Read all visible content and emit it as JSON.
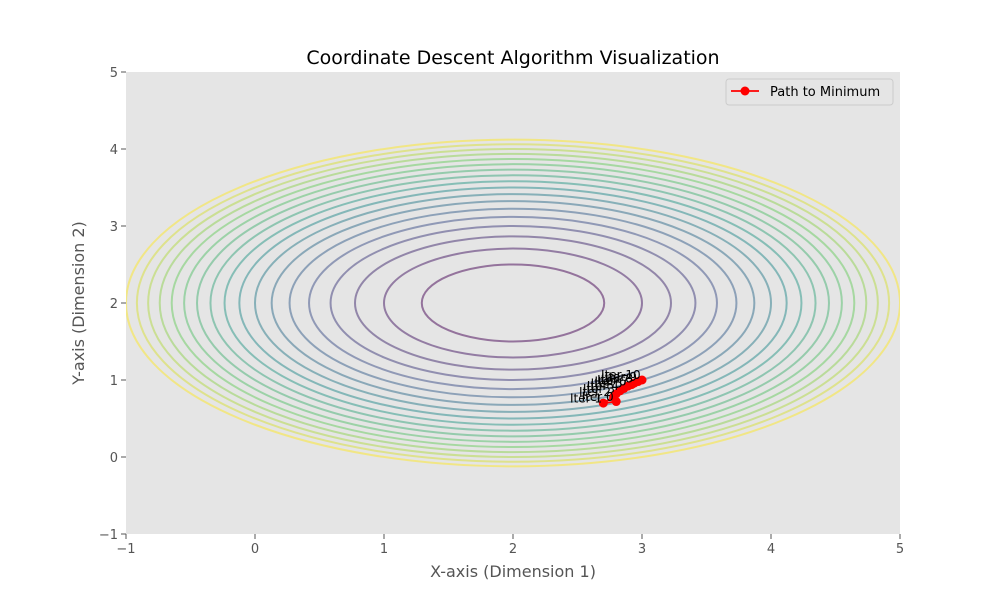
{
  "chart_data": {
    "type": "line",
    "title": "Coordinate Descent Algorithm Visualization",
    "xlabel": "X-axis (Dimension 1)",
    "ylabel": "Y-axis (Dimension 2)",
    "xlim": [
      -1,
      5
    ],
    "ylim": [
      -1,
      5
    ],
    "xticks": [
      "−1",
      "0",
      "1",
      "2",
      "3",
      "4",
      "5"
    ],
    "yticks": [
      "−1",
      "0",
      "1",
      "2",
      "3",
      "4",
      "5"
    ],
    "grid": false,
    "legend": {
      "position": "top-right",
      "entries": [
        "Path to Minimum"
      ]
    },
    "contour": {
      "function": "(x-2)^2 + 2*(y-2)^2",
      "center": [
        2,
        2
      ],
      "levels": [
        0.5,
        1.0,
        1.5,
        2.0,
        2.5,
        3.0,
        3.5,
        4.0,
        4.5,
        5.0,
        5.5,
        6.0,
        6.5,
        7.0,
        7.5,
        8.0,
        8.5,
        9.0
      ]
    },
    "series": [
      {
        "name": "Path to Minimum",
        "color": "#ff0000",
        "x": [
          3.0,
          2.97,
          2.94,
          2.92,
          2.89,
          2.86,
          2.83,
          2.8,
          2.78,
          2.7,
          2.8
        ],
        "y": [
          1.0,
          0.98,
          0.96,
          0.94,
          0.92,
          0.89,
          0.86,
          0.82,
          0.78,
          0.7,
          0.72
        ]
      }
    ],
    "annotations": [
      {
        "text": "Iter 10",
        "x": 2.99,
        "y": 1.01
      },
      {
        "text": "Iter 9",
        "x": 2.96,
        "y": 0.99
      },
      {
        "text": "Iter 8",
        "x": 2.93,
        "y": 0.97
      },
      {
        "text": "Iter 7",
        "x": 2.9,
        "y": 0.95
      },
      {
        "text": "Iter 6",
        "x": 2.88,
        "y": 0.93
      },
      {
        "text": "Iter 5",
        "x": 2.85,
        "y": 0.9
      },
      {
        "text": "Iter 4",
        "x": 2.82,
        "y": 0.87
      },
      {
        "text": "Iter 3",
        "x": 2.79,
        "y": 0.83
      },
      {
        "text": "Iter 2",
        "x": 2.76,
        "y": 0.79
      },
      {
        "text": "Iter 1",
        "x": 2.69,
        "y": 0.71
      },
      {
        "text": "Iter 0",
        "x": 2.78,
        "y": 0.73
      }
    ]
  }
}
